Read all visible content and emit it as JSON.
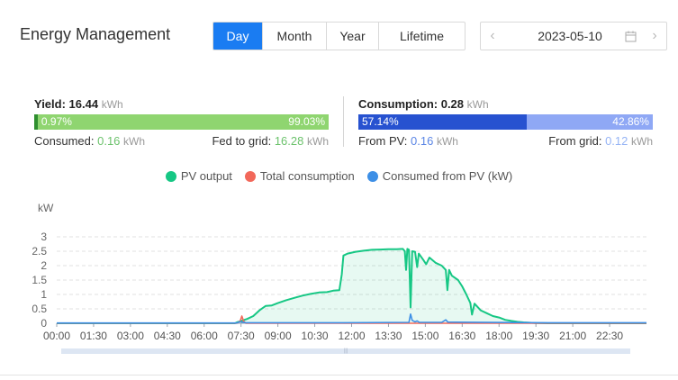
{
  "header": {
    "title": "Energy Management"
  },
  "tabs": [
    {
      "label": "Day",
      "active": true
    },
    {
      "label": "Month",
      "active": false
    },
    {
      "label": "Year",
      "active": false
    },
    {
      "label": "Lifetime",
      "active": false
    }
  ],
  "date_picker": {
    "value": "2023-05-10",
    "prev_icon": "chevron-left-icon",
    "next_icon": "chevron-right-icon",
    "calendar_icon": "calendar-icon"
  },
  "yield": {
    "label": "Yield:",
    "value": "16.44",
    "unit": "kWh",
    "bar": [
      {
        "label": "0.97%",
        "percent": 0.97,
        "color": "#2f8f2f"
      },
      {
        "label": "99.03%",
        "percent": 99.03,
        "color": "#8fd570"
      }
    ],
    "consumed_label": "Consumed:",
    "consumed_value": "0.16",
    "consumed_unit": "kWh",
    "fed_label": "Fed to grid:",
    "fed_value": "16.28",
    "fed_unit": "kWh"
  },
  "consumption": {
    "label": "Consumption:",
    "value": "0.28",
    "unit": "kWh",
    "bar": [
      {
        "label": "57.14%",
        "percent": 57.14,
        "color": "#2752d0"
      },
      {
        "label": "42.86%",
        "percent": 42.86,
        "color": "#8fa8f5"
      }
    ],
    "from_pv_label": "From PV:",
    "from_pv_value": "0.16",
    "from_pv_unit": "kWh",
    "from_grid_label": "From grid:",
    "from_grid_value": "0.12",
    "from_grid_unit": "kWh"
  },
  "chart_data": {
    "type": "area",
    "ylabel": "kW",
    "ylim": [
      0,
      3
    ],
    "yticks": [
      "0",
      "0.5",
      "1",
      "1.5",
      "2",
      "2.5",
      "3"
    ],
    "xticks": [
      "00:00",
      "01:30",
      "03:00",
      "04:30",
      "06:00",
      "07:30",
      "09:00",
      "10:30",
      "12:00",
      "13:30",
      "15:00",
      "16:30",
      "18:00",
      "19:30",
      "21:00",
      "22:30"
    ],
    "grid": true,
    "legend_position": "top-center",
    "series": [
      {
        "name": "PV output",
        "color": "#16c784",
        "points": [
          [
            0,
            0
          ],
          [
            435,
            0
          ],
          [
            440,
            0.03
          ],
          [
            450,
            0.08
          ],
          [
            465,
            0.15
          ],
          [
            480,
            0.25
          ],
          [
            495,
            0.45
          ],
          [
            510,
            0.6
          ],
          [
            525,
            0.62
          ],
          [
            540,
            0.7
          ],
          [
            560,
            0.8
          ],
          [
            580,
            0.88
          ],
          [
            600,
            0.96
          ],
          [
            620,
            1.02
          ],
          [
            640,
            1.07
          ],
          [
            660,
            1.08
          ],
          [
            675,
            1.13
          ],
          [
            690,
            1.15
          ],
          [
            696,
            1.7
          ],
          [
            700,
            2.35
          ],
          [
            710,
            2.42
          ],
          [
            730,
            2.48
          ],
          [
            750,
            2.52
          ],
          [
            770,
            2.55
          ],
          [
            790,
            2.56
          ],
          [
            810,
            2.57
          ],
          [
            830,
            2.57
          ],
          [
            845,
            2.58
          ],
          [
            850,
            2.5
          ],
          [
            853,
            1.85
          ],
          [
            856,
            2.58
          ],
          [
            860,
            2.55
          ],
          [
            864,
            0.55
          ],
          [
            868,
            2.5
          ],
          [
            875,
            2.48
          ],
          [
            880,
            1.95
          ],
          [
            884,
            2.42
          ],
          [
            895,
            2.2
          ],
          [
            902,
            2.05
          ],
          [
            910,
            2.28
          ],
          [
            925,
            2.1
          ],
          [
            940,
            2.0
          ],
          [
            950,
            1.85
          ],
          [
            954,
            1.15
          ],
          [
            958,
            1.85
          ],
          [
            965,
            1.65
          ],
          [
            980,
            1.5
          ],
          [
            990,
            1.28
          ],
          [
            1000,
            1.0
          ],
          [
            1010,
            0.7
          ],
          [
            1014,
            0.3
          ],
          [
            1020,
            0.68
          ],
          [
            1035,
            0.45
          ],
          [
            1050,
            0.35
          ],
          [
            1065,
            0.25
          ],
          [
            1080,
            0.2
          ],
          [
            1095,
            0.12
          ],
          [
            1110,
            0.08
          ],
          [
            1125,
            0.05
          ],
          [
            1140,
            0.03
          ],
          [
            1170,
            0.01
          ],
          [
            1200,
            0
          ],
          [
            1440,
            0
          ]
        ]
      },
      {
        "name": "Total consumption",
        "color": "#f2685a",
        "points": [
          [
            0,
            0
          ],
          [
            440,
            0
          ],
          [
            448,
            0.08
          ],
          [
            452,
            0.25
          ],
          [
            456,
            0.08
          ],
          [
            462,
            0
          ],
          [
            1440,
            0
          ]
        ]
      },
      {
        "name": "Consumed from PV (kW)",
        "color": "#3d8fe6",
        "points": [
          [
            0,
            0.01
          ],
          [
            440,
            0.01
          ],
          [
            448,
            0.06
          ],
          [
            452,
            0.04
          ],
          [
            462,
            0.02
          ],
          [
            700,
            0.02
          ],
          [
            860,
            0.03
          ],
          [
            864,
            0.32
          ],
          [
            868,
            0.1
          ],
          [
            875,
            0.05
          ],
          [
            880,
            0.08
          ],
          [
            885,
            0.03
          ],
          [
            940,
            0.03
          ],
          [
            950,
            0.12
          ],
          [
            955,
            0.04
          ],
          [
            1200,
            0.02
          ],
          [
            1440,
            0.02
          ]
        ]
      }
    ]
  }
}
